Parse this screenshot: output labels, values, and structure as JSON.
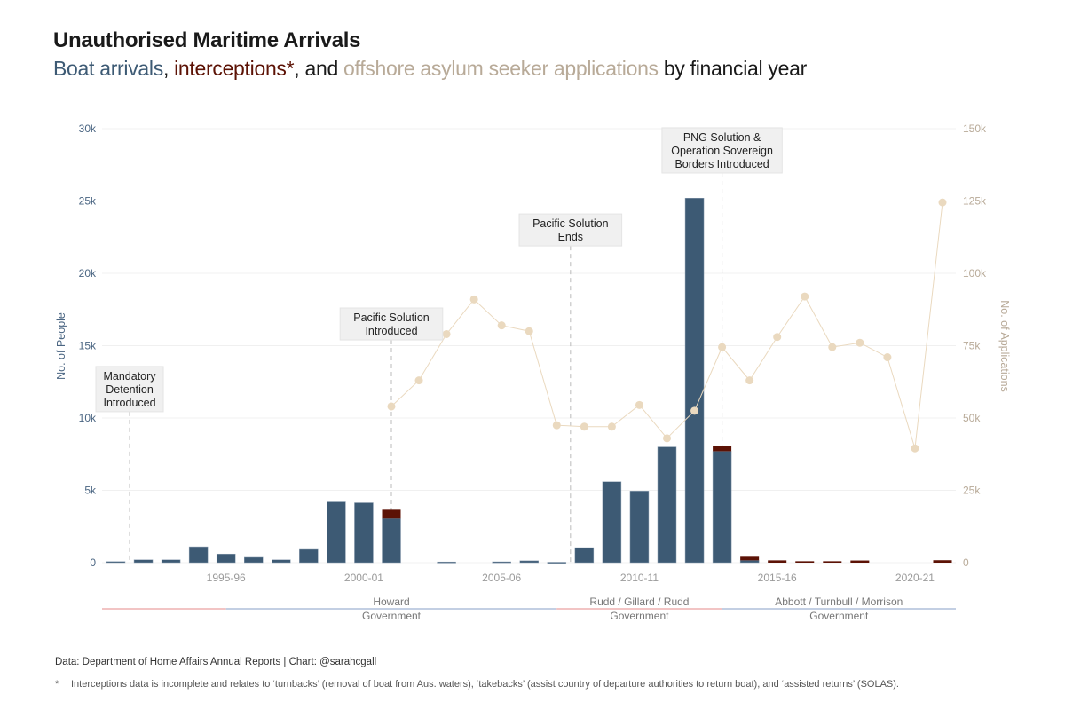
{
  "title": "Unauthorised Maritime Arrivals",
  "subtitle": {
    "boat": "Boat arrivals",
    "sep1": ", ",
    "interceptions": "interceptions*",
    "sep2": ", and ",
    "applications": "offshore asylum seeker applications",
    "rest": " by financial year"
  },
  "colors": {
    "boat": "#3d5a74",
    "interceptions": "#5c1205",
    "applications": "#ead9bf",
    "applications_text": "#b8aa98",
    "left_axis_text": "#4a6582",
    "grid": "#f0f0f0",
    "labor": "#f2c4c4",
    "coalition": "#c3cfe3"
  },
  "chart_data": {
    "type": "bar",
    "title": "Unauthorised Maritime Arrivals",
    "categories": [
      "1991-92",
      "1992-93",
      "1993-94",
      "1994-95",
      "1995-96",
      "1996-97",
      "1997-98",
      "1998-99",
      "1999-00",
      "2000-01",
      "2001-02",
      "2002-03",
      "2003-04",
      "2004-05",
      "2005-06",
      "2006-07",
      "2007-08",
      "2008-09",
      "2009-10",
      "2010-11",
      "2011-12",
      "2012-13",
      "2013-14",
      "2014-15",
      "2015-16",
      "2016-17",
      "2017-18",
      "2018-19",
      "2019-20",
      "2020-21",
      "2021-22"
    ],
    "tick_labels": [
      "1995-96",
      "2000-01",
      "2005-06",
      "2010-11",
      "2015-16",
      "2020-21"
    ],
    "series": [
      {
        "name": "Boat arrivals",
        "type": "bar",
        "axis": "left",
        "values": [
          78,
          200,
          200,
          1100,
          600,
          370,
          200,
          920,
          4200,
          4140,
          3050,
          0,
          50,
          0,
          60,
          130,
          30,
          1040,
          5600,
          4950,
          8000,
          25200,
          7700,
          160,
          0,
          0,
          0,
          0,
          0,
          0,
          0
        ]
      },
      {
        "name": "Interceptions",
        "type": "bar-stacked",
        "axis": "left",
        "values": [
          0,
          0,
          0,
          0,
          0,
          0,
          0,
          0,
          0,
          0,
          610,
          0,
          0,
          0,
          0,
          0,
          0,
          0,
          0,
          0,
          0,
          0,
          370,
          250,
          160,
          100,
          100,
          150,
          0,
          0,
          170
        ]
      },
      {
        "name": "Offshore asylum seeker applications",
        "type": "line",
        "axis": "right",
        "values": [
          null,
          null,
          null,
          null,
          null,
          null,
          null,
          null,
          null,
          null,
          54000,
          63000,
          79000,
          91000,
          82000,
          80000,
          47500,
          47000,
          47000,
          54500,
          43000,
          52500,
          74500,
          63000,
          78000,
          92000,
          74500,
          76000,
          71000,
          39500,
          124500
        ]
      }
    ],
    "ylabel": "No. of People",
    "ylim": [
      0,
      30000
    ],
    "yticks": [
      "0",
      "5k",
      "10k",
      "15k",
      "20k",
      "25k",
      "30k"
    ],
    "y2label": "No. of Applications",
    "y2lim": [
      0,
      150000
    ],
    "y2ticks": [
      "0",
      "25k",
      "50k",
      "75k",
      "100k",
      "125k",
      "150k"
    ],
    "grid": true,
    "annotations": [
      {
        "category": "1992-93",
        "position": "before",
        "lines": [
          "Mandatory",
          "Detention",
          "Introduced"
        ],
        "level_k": 12000
      },
      {
        "category": "2001-02",
        "lines": [
          "Pacific Solution",
          "Introduced"
        ],
        "level_k": 16500
      },
      {
        "category": "2007-08",
        "position": "after",
        "lines": [
          "Pacific Solution",
          "Ends"
        ],
        "level_k": 23000
      },
      {
        "category": "2013-14",
        "lines": [
          "PNG Solution &",
          "Operation Sovereign",
          "Borders Introduced"
        ],
        "level_k": 28500
      }
    ],
    "governments": [
      {
        "name": "",
        "party": "labor",
        "from": "1991-92",
        "to": "1995-96"
      },
      {
        "name": "Howard",
        "label2": "Government",
        "party": "coalition",
        "from": "1995-96",
        "to": "2007-08"
      },
      {
        "name": "Rudd / Gillard / Rudd",
        "label2": "Government",
        "party": "labor",
        "from": "2007-08",
        "to": "2013-14"
      },
      {
        "name": "Abbott / Turnbull / Morrison",
        "label2": "Government",
        "party": "coalition",
        "from": "2013-14",
        "to": "2021-22"
      }
    ]
  },
  "footer": {
    "source": "Data: Department of Home Affairs Annual Reports  |  Chart: @sarahcgall",
    "note_star": "*",
    "note": "Interceptions data is incomplete and relates to ‘turnbacks’ (removal of boat from Aus. waters), ‘takebacks’ (assist country of departure authorities to return boat), and ‘assisted returns’ (SOLAS)."
  }
}
